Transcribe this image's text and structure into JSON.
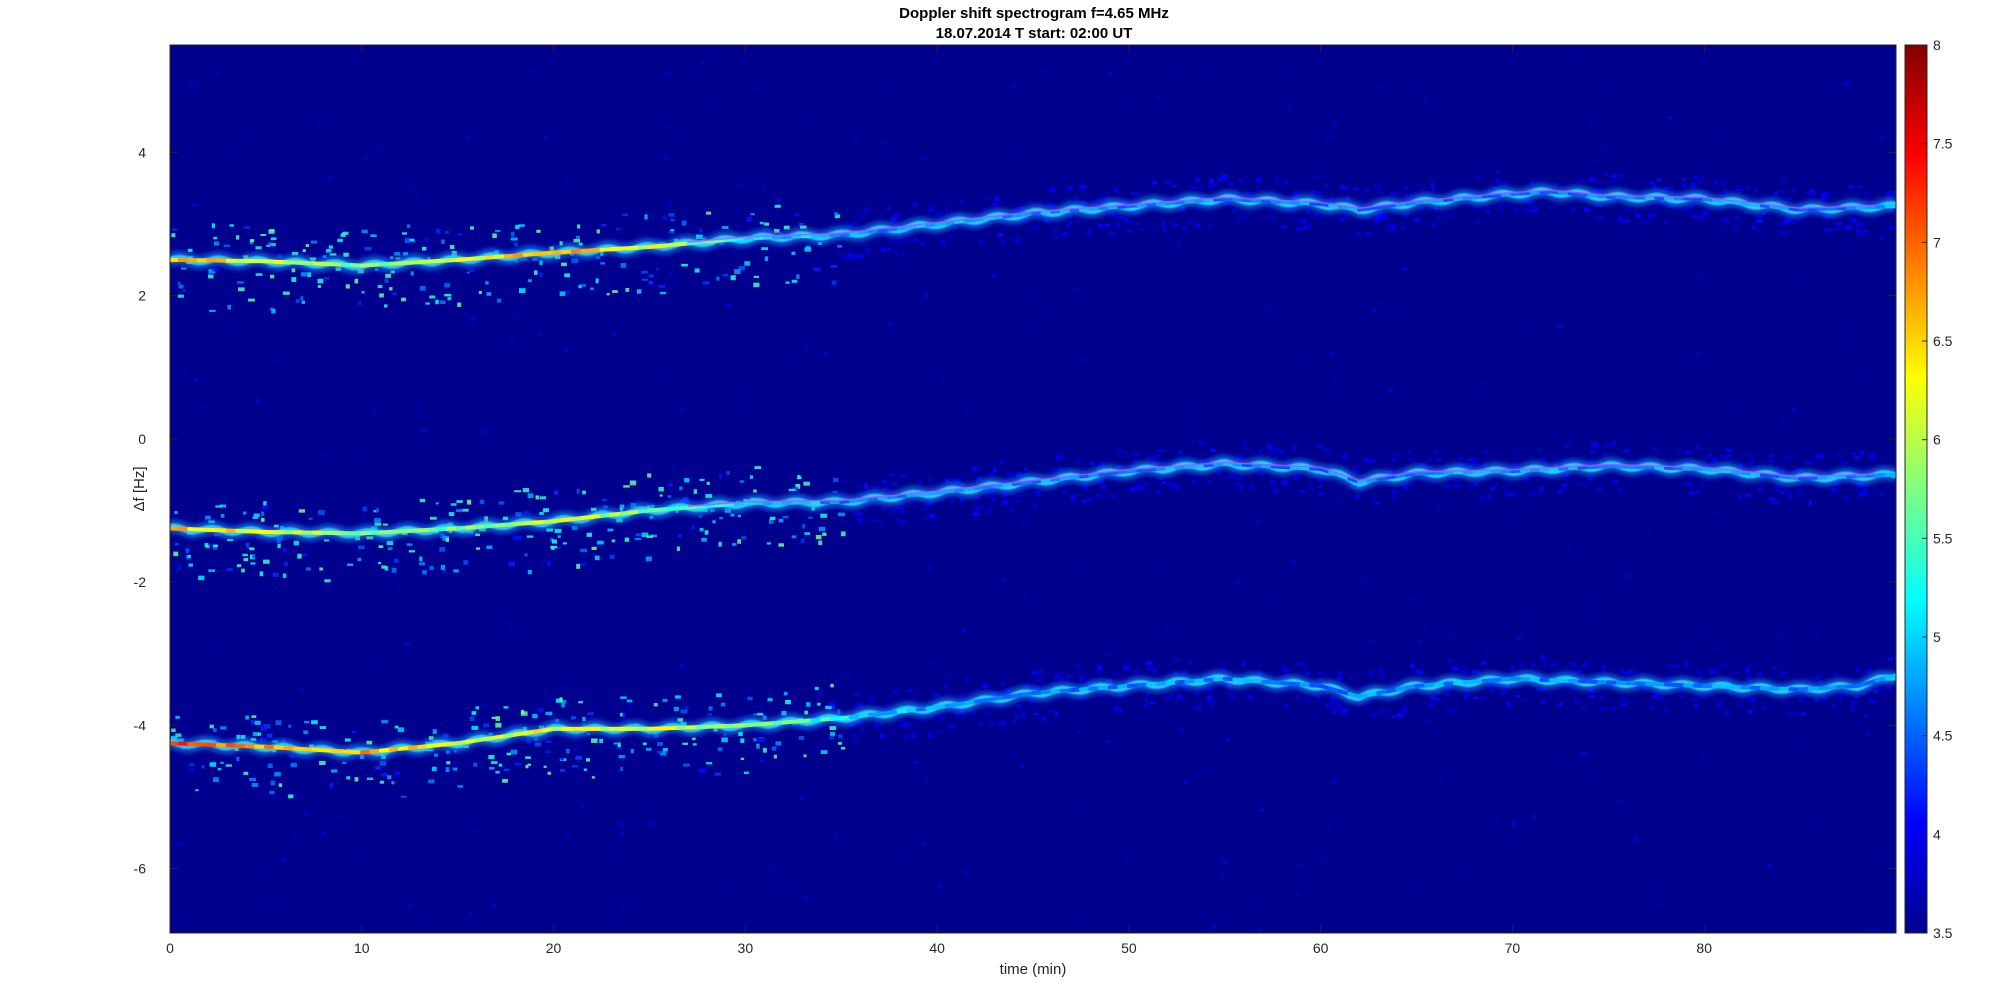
{
  "chart_data": {
    "type": "heatmap",
    "title": "Doppler shift spectrogram f=4.65 MHz",
    "subtitle": "18.07.2014   T start: 02:00 UT",
    "xlabel": "time (min)",
    "ylabel": "Δf [Hz]",
    "xlim": [
      0,
      90
    ],
    "ylim": [
      -6.9,
      5.5
    ],
    "xticks": [
      0,
      10,
      20,
      30,
      40,
      50,
      60,
      70,
      80
    ],
    "yticks": [
      -6,
      -4,
      -2,
      0,
      2,
      4
    ],
    "colorbar": {
      "colormap": "jet",
      "range": [
        3.5,
        8
      ],
      "ticks": [
        3.5,
        4,
        4.5,
        5,
        5.5,
        6,
        6.5,
        7,
        7.5,
        8
      ]
    },
    "grid": false,
    "series": [
      {
        "x": [
          0,
          5,
          10,
          15,
          20,
          25,
          30,
          35,
          40,
          45,
          50,
          55,
          60,
          62,
          65,
          70,
          72,
          75,
          80,
          85,
          90
        ],
        "y": [
          2.5,
          2.48,
          2.42,
          2.5,
          2.6,
          2.68,
          2.8,
          2.85,
          3.0,
          3.15,
          3.25,
          3.35,
          3.28,
          3.2,
          3.3,
          3.42,
          3.45,
          3.38,
          3.35,
          3.2,
          3.25
        ],
        "peak_intensity": [
          7.0,
          6.5,
          6.0,
          6.5,
          7.0,
          6.5,
          5.5,
          5.0,
          5.0,
          5.0,
          5.0,
          5.0,
          5.0,
          5.0,
          5.0,
          5.0,
          5.0,
          5.0,
          5.0,
          5.0,
          5.0
        ]
      },
      {
        "x": [
          0,
          5,
          10,
          15,
          20,
          25,
          30,
          35,
          40,
          45,
          50,
          55,
          60,
          62,
          65,
          70,
          75,
          80,
          85,
          90
        ],
        "y": [
          -1.25,
          -1.3,
          -1.32,
          -1.25,
          -1.15,
          -1.0,
          -0.9,
          -0.88,
          -0.75,
          -0.6,
          -0.45,
          -0.35,
          -0.42,
          -0.6,
          -0.48,
          -0.45,
          -0.38,
          -0.42,
          -0.55,
          -0.5
        ],
        "peak_intensity": [
          7.0,
          6.5,
          6.0,
          6.0,
          6.5,
          6.0,
          5.5,
          5.0,
          5.0,
          5.0,
          5.0,
          5.0,
          5.0,
          5.0,
          5.0,
          5.0,
          5.0,
          5.0,
          5.0,
          5.0
        ]
      },
      {
        "x": [
          0,
          5,
          10,
          15,
          20,
          25,
          30,
          35,
          40,
          45,
          50,
          55,
          60,
          62,
          65,
          70,
          75,
          80,
          85,
          88,
          90
        ],
        "y": [
          -4.25,
          -4.3,
          -4.38,
          -4.25,
          -4.05,
          -4.05,
          -4.0,
          -3.9,
          -3.75,
          -3.55,
          -3.45,
          -3.35,
          -3.45,
          -3.6,
          -3.45,
          -3.35,
          -3.4,
          -3.45,
          -3.5,
          -3.45,
          -3.3
        ],
        "peak_intensity": [
          7.5,
          7.0,
          7.0,
          6.5,
          6.5,
          6.5,
          6.0,
          5.5,
          5.0,
          5.0,
          5.0,
          5.0,
          5.0,
          5.0,
          5.0,
          5.0,
          5.0,
          5.0,
          5.0,
          5.0,
          5.0
        ]
      }
    ]
  }
}
